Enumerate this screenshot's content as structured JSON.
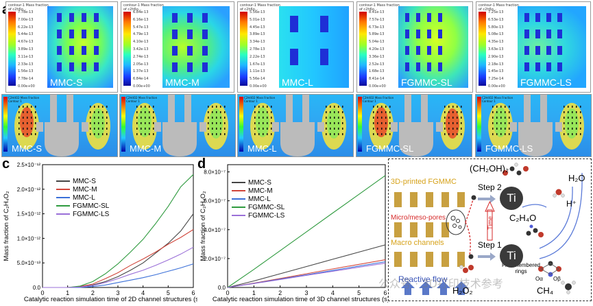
{
  "panel_labels": {
    "a": "a",
    "b": "b",
    "c": "c",
    "d": "d",
    "e": "e"
  },
  "row_a": {
    "contour_title": "contour-1",
    "contour_subtitle": "Mass fraction of c2h6o...",
    "panels": [
      {
        "name": "MMC-S",
        "ticks": [
          "7.78e-13",
          "7.00e-13",
          "6.22e-13",
          "5.44e-13",
          "4.67e-13",
          "3.89e-13",
          "3.11e-13",
          "2.33e-13",
          "1.56e-13",
          "7.78e-14",
          "0.00e+00"
        ]
      },
      {
        "name": "MMC-M",
        "ticks": [
          "6.84e-13",
          "6.16e-13",
          "5.47e-13",
          "4.79e-13",
          "4.10e-13",
          "3.42e-13",
          "2.74e-13",
          "2.05e-13",
          "1.37e-13",
          "6.84e-14",
          "0.00e+00"
        ]
      },
      {
        "name": "MMC-L",
        "ticks": [
          "5.56e-13",
          "5.01e-13",
          "4.45e-13",
          "3.89e-13",
          "3.34e-13",
          "2.78e-13",
          "2.22e-13",
          "1.67e-13",
          "1.11e-13",
          "5.56e-14",
          "0.00e+00"
        ]
      },
      {
        "name": "FGMMC-SL",
        "ticks": [
          "8.41e-13",
          "7.57e-13",
          "6.73e-13",
          "5.89e-13",
          "5.04e-13",
          "4.20e-13",
          "3.36e-13",
          "2.52e-13",
          "1.68e-13",
          "8.41e-14",
          "0.00e+00"
        ]
      },
      {
        "name": "FGMMC-LS",
        "ticks": [
          "7.25e-13",
          "6.53e-13",
          "5.80e-13",
          "5.08e-13",
          "4.35e-13",
          "3.63e-13",
          "2.90e-13",
          "2.18e-13",
          "1.45e-13",
          "7.25e-14",
          "0.00e+00"
        ]
      }
    ]
  },
  "row_b": {
    "legend_title": "C2H4O2 Mass Fraction",
    "legend_sub": "Contour 1",
    "panels": [
      {
        "name": "MMC-S"
      },
      {
        "name": "MMC-M"
      },
      {
        "name": "MMC-L"
      },
      {
        "name": "FGMMC-SL"
      },
      {
        "name": "FGMMC-LS"
      }
    ]
  },
  "chart_data": [
    {
      "type": "line",
      "panel": "c",
      "xlabel": "Catalytic reaction simulation time of 2D channel structures (s)",
      "ylabel": "Mass fraction of C₂H₄O₂",
      "xlim": [
        0,
        6
      ],
      "ylim": [
        0,
        2.5e-12
      ],
      "x_ticks": [
        "0",
        "1",
        "2",
        "3",
        "4",
        "5",
        "6"
      ],
      "y_ticks": [
        "0.0",
        "5.0×10⁻¹³",
        "1.0×10⁻¹²",
        "1.5×10⁻¹²",
        "2.0×10⁻¹²",
        "2.5×10⁻¹²"
      ],
      "x": [
        0,
        1,
        1.5,
        2,
        2.5,
        3,
        3.5,
        4,
        4.5,
        5,
        5.5,
        6
      ],
      "series": [
        {
          "name": "MMC-S",
          "color": "#444444",
          "values": [
            0,
            0,
            1e-14,
            5e-14,
            1.2e-13,
            2.2e-13,
            3.5e-13,
            5e-13,
            7e-13,
            9e-13,
            1.15e-12,
            1.5e-12
          ]
        },
        {
          "name": "MMC-M",
          "color": "#d0453a",
          "values": [
            0,
            0,
            2e-14,
            7e-14,
            1.8e-13,
            3e-13,
            4.5e-13,
            5.8e-13,
            7.2e-13,
            8.8e-13,
            1.02e-12,
            1.18e-12
          ]
        },
        {
          "name": "MMC-L",
          "color": "#3a6fd8",
          "values": [
            0,
            0,
            0,
            2e-14,
            5e-14,
            1e-13,
            1.5e-13,
            2e-13,
            2.6e-13,
            3.3e-13,
            4e-13,
            4.8e-13
          ]
        },
        {
          "name": "FGMMC-SL",
          "color": "#2e9a3e",
          "values": [
            0,
            0,
            3e-14,
            1.2e-13,
            2.8e-13,
            4.8e-13,
            7.2e-13,
            9.8e-13,
            1.3e-12,
            1.65e-12,
            2.05e-12,
            2.3e-12
          ]
        },
        {
          "name": "FGMMC-LS",
          "color": "#9a6fd8",
          "values": [
            0,
            0,
            1e-14,
            4e-14,
            1e-13,
            1.8e-13,
            2.7e-13,
            3.5e-13,
            4.5e-13,
            5.6e-13,
            6.8e-13,
            8.2e-13
          ]
        }
      ]
    },
    {
      "type": "line",
      "panel": "d",
      "xlabel": "Catalytic reaction simulation time of 3D channel structures (s)",
      "ylabel": "Mass fraction of C₂H₄O₂",
      "xlim": [
        0,
        6
      ],
      "ylim": [
        0,
        8.5e-07
      ],
      "x_ticks": [
        "0",
        "1",
        "2",
        "3",
        "4",
        "5",
        "6"
      ],
      "y_ticks": [
        "0.0",
        "2.0×10⁻⁷",
        "4.0×10⁻⁷",
        "6.0×10⁻⁷",
        "8.0×10⁻⁷"
      ],
      "x": [
        0,
        1,
        2,
        3,
        4,
        5,
        6
      ],
      "series": [
        {
          "name": "MMC-S",
          "color": "#444444",
          "values": [
            0,
            4.5e-08,
            9.5e-08,
            1.45e-07,
            1.95e-07,
            2.45e-07,
            2.95e-07
          ]
        },
        {
          "name": "MMC-M",
          "color": "#d0453a",
          "values": [
            0,
            3e-08,
            6.2e-08,
            9.5e-08,
            1.28e-07,
            1.6e-07,
            1.92e-07
          ]
        },
        {
          "name": "MMC-L",
          "color": "#3a6fd8",
          "values": [
            0,
            2.8e-08,
            5.8e-08,
            8.8e-08,
            1.18e-07,
            1.48e-07,
            1.78e-07
          ]
        },
        {
          "name": "FGMMC-SL",
          "color": "#2e9a3e",
          "values": [
            0,
            1.25e-07,
            2.55e-07,
            3.85e-07,
            5.15e-07,
            6.45e-07,
            7.75e-07
          ]
        },
        {
          "name": "FGMMC-LS",
          "color": "#9a6fd8",
          "values": [
            0,
            2.7e-08,
            5.5e-08,
            8.4e-08,
            1.12e-07,
            1.4e-07,
            1.68e-07
          ]
        }
      ]
    }
  ],
  "panel_e": {
    "fgmmc_label": "3D-printed FGMMC",
    "pores_label": "Micro/meso-pores",
    "macro_label": "Macro channels",
    "flow_label": "Reactive flow",
    "step1": "Step 1",
    "step2": "Step 2",
    "time": "Time",
    "ti": "Ti",
    "product_ethylene_glycol": "(CH₂OH)₂",
    "water": "H₂O",
    "proton": "H⁺",
    "acetaldehyde": "C₂H₄O",
    "h2o2": "H₂O₂",
    "methane": "CH₄",
    "rings": "Five-membered rings",
    "o_alpha": "Oα",
    "o_beta": "Oβ"
  },
  "watermark": "公众号 · 3D打印技术参考"
}
